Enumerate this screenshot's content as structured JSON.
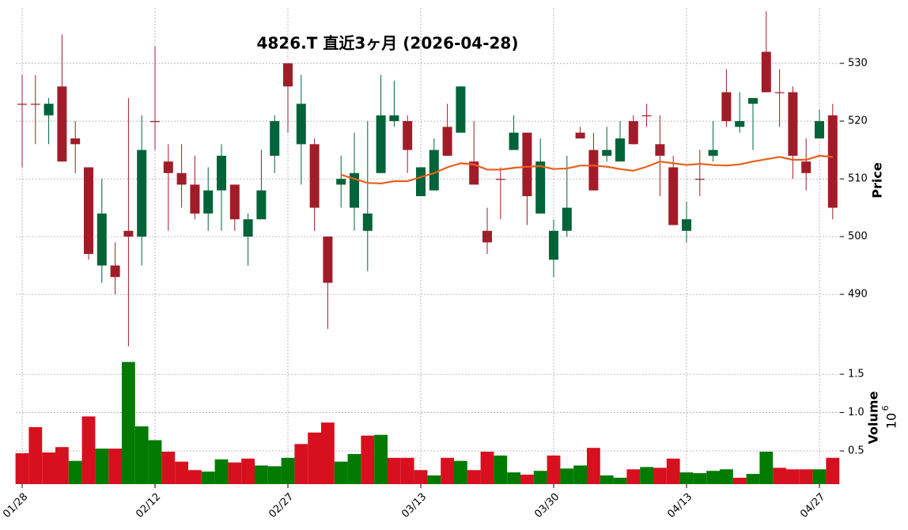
{
  "chart_data": {
    "type": "candlestick",
    "title": "4826.T 直近3ヶ月 (2026-04-28)",
    "categories": [
      "01/28",
      null,
      null,
      null,
      null,
      null,
      null,
      null,
      null,
      null,
      "02/12",
      null,
      null,
      null,
      null,
      null,
      null,
      null,
      null,
      null,
      "02/27",
      null,
      null,
      null,
      null,
      null,
      null,
      null,
      null,
      null,
      "03/13",
      null,
      null,
      null,
      null,
      null,
      null,
      null,
      null,
      null,
      "03/30",
      null,
      null,
      null,
      null,
      null,
      null,
      null,
      null,
      null,
      "04/13",
      null,
      null,
      null,
      null,
      null,
      null,
      null,
      null,
      null,
      "04/27",
      null
    ],
    "open": [
      523,
      523,
      521,
      526,
      517,
      512,
      495,
      495,
      501,
      500,
      520,
      513,
      511,
      509,
      504,
      508,
      509,
      500,
      503,
      514,
      530,
      516,
      516,
      500,
      509,
      505,
      501,
      511,
      520,
      520,
      507,
      508,
      519,
      518,
      513,
      501,
      510,
      515,
      518,
      504,
      496,
      501,
      518,
      515,
      514,
      513,
      520,
      521,
      516,
      512,
      501,
      510,
      514,
      525,
      519,
      523,
      532,
      525,
      525,
      513,
      517,
      521
    ],
    "high": [
      528,
      528,
      524,
      535,
      520,
      512,
      510,
      499,
      524,
      521,
      533,
      516,
      516,
      514,
      512,
      516,
      509,
      504,
      515,
      521,
      530,
      528,
      517,
      500,
      514,
      518,
      520,
      528,
      527,
      521,
      512,
      517,
      523,
      526,
      520,
      505,
      512,
      521,
      518,
      517,
      503,
      514,
      519,
      518,
      519,
      520,
      521,
      523,
      521,
      514,
      506,
      515,
      520,
      529,
      525,
      524,
      539,
      529,
      526,
      517,
      522,
      523
    ],
    "low": [
      512,
      516,
      516,
      513,
      511,
      496,
      492,
      490,
      481,
      495,
      515,
      501,
      505,
      503,
      501,
      501,
      501,
      495,
      503,
      511,
      518,
      509,
      501,
      484,
      505,
      501,
      494,
      511,
      519,
      511,
      507,
      508,
      514,
      518,
      509,
      497,
      503,
      515,
      502,
      504,
      493,
      500,
      517,
      508,
      513,
      513,
      516,
      519,
      507,
      502,
      499,
      507,
      513,
      519,
      518,
      515,
      525,
      519,
      510,
      508,
      517,
      503
    ],
    "close": [
      523,
      523,
      523,
      513,
      516,
      497,
      504,
      493,
      500,
      515,
      520,
      511,
      509,
      504,
      508,
      514,
      503,
      503,
      508,
      520,
      526,
      523,
      505,
      492,
      510,
      511,
      504,
      521,
      521,
      515,
      512,
      515,
      514,
      526,
      509,
      499,
      510,
      518,
      507,
      513,
      501,
      505,
      517,
      508,
      515,
      517,
      516,
      521,
      514,
      502,
      503,
      510,
      515,
      520,
      520,
      524,
      525,
      525,
      514,
      511,
      520,
      505
    ],
    "up_color": "#00633a",
    "down_color": "#a11c29",
    "moving_average": {
      "color": "#e8601c",
      "values": [
        null,
        null,
        null,
        null,
        null,
        null,
        null,
        null,
        null,
        null,
        null,
        null,
        null,
        null,
        null,
        null,
        null,
        null,
        null,
        null,
        null,
        null,
        null,
        null,
        510.7,
        510,
        509.3,
        509.2,
        509.6,
        509.6,
        510.3,
        511,
        512,
        512.7,
        512.5,
        511.6,
        511.6,
        511.9,
        512.1,
        512.2,
        511.7,
        511.8,
        512.3,
        512.3,
        512.1,
        511.7,
        511.4,
        512.1,
        513,
        512.7,
        512.4,
        512.6,
        512.4,
        512.3,
        512.5,
        513,
        513.4,
        513.8,
        513.3,
        513.3,
        514,
        513.8
      ]
    },
    "ylabel": "Price",
    "ylim": [
      480.7,
      539.6
    ],
    "yticks": [
      490,
      500,
      510,
      520,
      530
    ],
    "grid": true,
    "volume": {
      "label": "Volume",
      "scale": {
        "base": "10",
        "exponent": "6"
      },
      "values": [
        0.47,
        0.81,
        0.48,
        0.55,
        0.37,
        0.95,
        0.53,
        0.53,
        1.66,
        0.82,
        0.64,
        0.49,
        0.36,
        0.25,
        0.23,
        0.39,
        0.35,
        0.4,
        0.31,
        0.3,
        0.41,
        0.59,
        0.74,
        0.87,
        0.36,
        0.46,
        0.7,
        0.71,
        0.41,
        0.41,
        0.25,
        0.18,
        0.41,
        0.37,
        0.25,
        0.49,
        0.44,
        0.22,
        0.19,
        0.24,
        0.44,
        0.27,
        0.31,
        0.54,
        0.18,
        0.15,
        0.26,
        0.29,
        0.28,
        0.4,
        0.22,
        0.21,
        0.24,
        0.26,
        0.15,
        0.2,
        0.49,
        0.28,
        0.26,
        0.26,
        0.26,
        0.41
      ],
      "colors": [
        "#d7101f",
        "#d7101f",
        "#d7101f",
        "#d7101f",
        "#007a00",
        "#d7101f",
        "#007a00",
        "#d7101f",
        "#007a00",
        "#007a00",
        "#007a00",
        "#d7101f",
        "#d7101f",
        "#d7101f",
        "#007a00",
        "#007a00",
        "#d7101f",
        "#d7101f",
        "#007a00",
        "#007a00",
        "#007a00",
        "#d7101f",
        "#d7101f",
        "#d7101f",
        "#007a00",
        "#007a00",
        "#d7101f",
        "#007a00",
        "#d7101f",
        "#d7101f",
        "#d7101f",
        "#007a00",
        "#d7101f",
        "#007a00",
        "#d7101f",
        "#d7101f",
        "#007a00",
        "#007a00",
        "#d7101f",
        "#007a00",
        "#d7101f",
        "#007a00",
        "#007a00",
        "#d7101f",
        "#007a00",
        "#007a00",
        "#d7101f",
        "#007a00",
        "#d7101f",
        "#d7101f",
        "#007a00",
        "#007a00",
        "#007a00",
        "#007a00",
        "#d7101f",
        "#007a00",
        "#007a00",
        "#d7101f",
        "#d7101f",
        "#d7101f",
        "#007a00",
        "#d7101f"
      ],
      "ylim": [
        0.067,
        1.79
      ],
      "yticks": [
        0.5,
        {
          "value": 1,
          "label": "1.0"
        },
        1.5
      ]
    }
  }
}
